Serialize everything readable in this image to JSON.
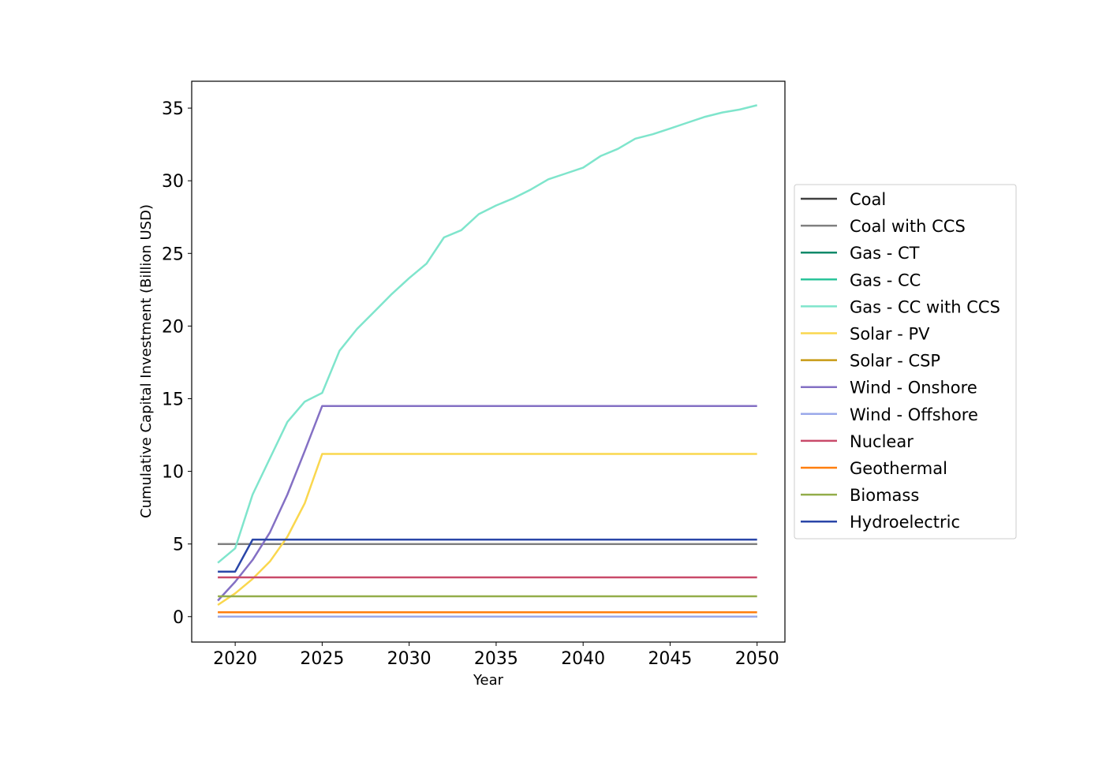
{
  "chart_data": {
    "type": "line",
    "xlabel": "Year",
    "ylabel": "Cumulative Capital Investment (Billion USD)",
    "xlim": [
      2017.5,
      2051.6
    ],
    "ylim": [
      -1.75,
      36.85
    ],
    "xticks": [
      2020,
      2025,
      2030,
      2035,
      2040,
      2045,
      2050
    ],
    "yticks": [
      0,
      5,
      10,
      15,
      20,
      25,
      30,
      35
    ],
    "grid": false,
    "legend_position": "outside-right",
    "x": [
      2019,
      2020,
      2021,
      2022,
      2023,
      2024,
      2025,
      2026,
      2027,
      2028,
      2029,
      2030,
      2031,
      2032,
      2033,
      2034,
      2035,
      2036,
      2037,
      2038,
      2039,
      2040,
      2041,
      2042,
      2043,
      2044,
      2045,
      2046,
      2047,
      2048,
      2049,
      2050
    ],
    "series": [
      {
        "name": "Coal",
        "color": "#404040",
        "values": [
          5.0,
          5.0,
          5.0,
          5.0,
          5.0,
          5.0,
          5.0,
          5.0,
          5.0,
          5.0,
          5.0,
          5.0,
          5.0,
          5.0,
          5.0,
          5.0,
          5.0,
          5.0,
          5.0,
          5.0,
          5.0,
          5.0,
          5.0,
          5.0,
          5.0,
          5.0,
          5.0,
          5.0,
          5.0,
          5.0,
          5.0,
          5.0
        ]
      },
      {
        "name": "Coal with CCS",
        "color": "#808080",
        "values": [
          5.0,
          5.0,
          5.0,
          5.0,
          5.0,
          5.0,
          5.0,
          5.0,
          5.0,
          5.0,
          5.0,
          5.0,
          5.0,
          5.0,
          5.0,
          5.0,
          5.0,
          5.0,
          5.0,
          5.0,
          5.0,
          5.0,
          5.0,
          5.0,
          5.0,
          5.0,
          5.0,
          5.0,
          5.0,
          5.0,
          5.0,
          5.0
        ]
      },
      {
        "name": "Gas - CT",
        "color": "#0f8a6a",
        "values": [
          0.0,
          0.0,
          0.0,
          0.0,
          0.0,
          0.0,
          0.0,
          0.0,
          0.0,
          0.0,
          0.0,
          0.0,
          0.0,
          0.0,
          0.0,
          0.0,
          0.0,
          0.0,
          0.0,
          0.0,
          0.0,
          0.0,
          0.0,
          0.0,
          0.0,
          0.0,
          0.0,
          0.0,
          0.0,
          0.0,
          0.0,
          0.0
        ]
      },
      {
        "name": "Gas - CC",
        "color": "#2bc49a",
        "values": [
          0.0,
          0.0,
          0.0,
          0.0,
          0.0,
          0.0,
          0.0,
          0.0,
          0.0,
          0.0,
          0.0,
          0.0,
          0.0,
          0.0,
          0.0,
          0.0,
          0.0,
          0.0,
          0.0,
          0.0,
          0.0,
          0.0,
          0.0,
          0.0,
          0.0,
          0.0,
          0.0,
          0.0,
          0.0,
          0.0,
          0.0,
          0.0
        ]
      },
      {
        "name": "Gas - CC with CCS",
        "color": "#7fe5cc",
        "values": [
          3.7,
          4.7,
          8.4,
          10.9,
          13.4,
          14.8,
          15.4,
          18.3,
          19.8,
          21.0,
          22.2,
          23.3,
          24.3,
          26.1,
          26.6,
          27.7,
          28.3,
          28.8,
          29.4,
          30.1,
          30.5,
          30.9,
          31.7,
          32.2,
          32.9,
          33.2,
          33.6,
          34.0,
          34.4,
          34.7,
          34.9,
          35.2
        ]
      },
      {
        "name": "Solar - PV",
        "color": "#fad74e",
        "values": [
          0.8,
          1.6,
          2.6,
          3.8,
          5.5,
          7.8,
          11.2,
          11.2,
          11.2,
          11.2,
          11.2,
          11.2,
          11.2,
          11.2,
          11.2,
          11.2,
          11.2,
          11.2,
          11.2,
          11.2,
          11.2,
          11.2,
          11.2,
          11.2,
          11.2,
          11.2,
          11.2,
          11.2,
          11.2,
          11.2,
          11.2,
          11.2
        ]
      },
      {
        "name": "Solar - CSP",
        "color": "#c79a14",
        "values": [
          0.0,
          0.0,
          0.0,
          0.0,
          0.0,
          0.0,
          0.0,
          0.0,
          0.0,
          0.0,
          0.0,
          0.0,
          0.0,
          0.0,
          0.0,
          0.0,
          0.0,
          0.0,
          0.0,
          0.0,
          0.0,
          0.0,
          0.0,
          0.0,
          0.0,
          0.0,
          0.0,
          0.0,
          0.0,
          0.0,
          0.0,
          0.0
        ]
      },
      {
        "name": "Wind - Onshore",
        "color": "#8470c4",
        "values": [
          1.1,
          2.4,
          3.9,
          5.8,
          8.4,
          11.4,
          14.5,
          14.5,
          14.5,
          14.5,
          14.5,
          14.5,
          14.5,
          14.5,
          14.5,
          14.5,
          14.5,
          14.5,
          14.5,
          14.5,
          14.5,
          14.5,
          14.5,
          14.5,
          14.5,
          14.5,
          14.5,
          14.5,
          14.5,
          14.5,
          14.5,
          14.5
        ]
      },
      {
        "name": "Wind - Offshore",
        "color": "#9aa8ea",
        "values": [
          0.0,
          0.0,
          0.0,
          0.0,
          0.0,
          0.0,
          0.0,
          0.0,
          0.0,
          0.0,
          0.0,
          0.0,
          0.0,
          0.0,
          0.0,
          0.0,
          0.0,
          0.0,
          0.0,
          0.0,
          0.0,
          0.0,
          0.0,
          0.0,
          0.0,
          0.0,
          0.0,
          0.0,
          0.0,
          0.0,
          0.0,
          0.0
        ]
      },
      {
        "name": "Nuclear",
        "color": "#c94a6a",
        "values": [
          2.7,
          2.7,
          2.7,
          2.7,
          2.7,
          2.7,
          2.7,
          2.7,
          2.7,
          2.7,
          2.7,
          2.7,
          2.7,
          2.7,
          2.7,
          2.7,
          2.7,
          2.7,
          2.7,
          2.7,
          2.7,
          2.7,
          2.7,
          2.7,
          2.7,
          2.7,
          2.7,
          2.7,
          2.7,
          2.7,
          2.7,
          2.7
        ]
      },
      {
        "name": "Geothermal",
        "color": "#ff7f0e",
        "values": [
          0.3,
          0.3,
          0.3,
          0.3,
          0.3,
          0.3,
          0.3,
          0.3,
          0.3,
          0.3,
          0.3,
          0.3,
          0.3,
          0.3,
          0.3,
          0.3,
          0.3,
          0.3,
          0.3,
          0.3,
          0.3,
          0.3,
          0.3,
          0.3,
          0.3,
          0.3,
          0.3,
          0.3,
          0.3,
          0.3,
          0.3,
          0.3
        ]
      },
      {
        "name": "Biomass",
        "color": "#93ad4a",
        "values": [
          1.4,
          1.4,
          1.4,
          1.4,
          1.4,
          1.4,
          1.4,
          1.4,
          1.4,
          1.4,
          1.4,
          1.4,
          1.4,
          1.4,
          1.4,
          1.4,
          1.4,
          1.4,
          1.4,
          1.4,
          1.4,
          1.4,
          1.4,
          1.4,
          1.4,
          1.4,
          1.4,
          1.4,
          1.4,
          1.4,
          1.4,
          1.4
        ]
      },
      {
        "name": "Hydroelectric",
        "color": "#2a46a8",
        "values": [
          3.1,
          3.1,
          5.3,
          5.3,
          5.3,
          5.3,
          5.3,
          5.3,
          5.3,
          5.3,
          5.3,
          5.3,
          5.3,
          5.3,
          5.3,
          5.3,
          5.3,
          5.3,
          5.3,
          5.3,
          5.3,
          5.3,
          5.3,
          5.3,
          5.3,
          5.3,
          5.3,
          5.3,
          5.3,
          5.3,
          5.3,
          5.3
        ]
      }
    ]
  }
}
